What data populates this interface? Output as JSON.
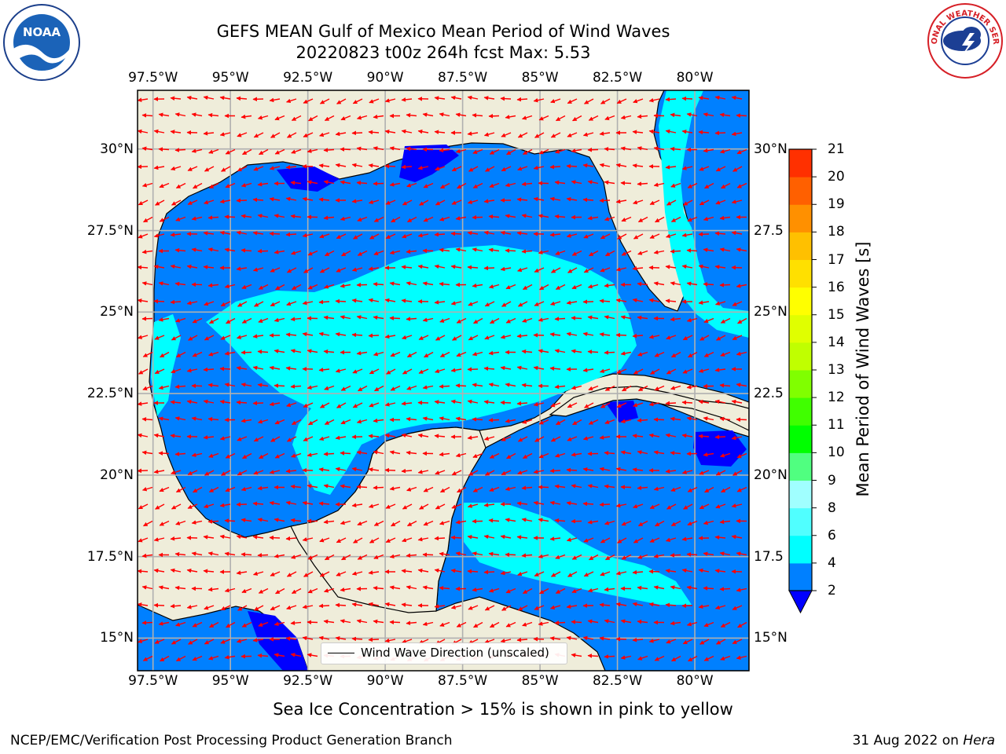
{
  "title": {
    "line1": "GEFS MEAN Gulf of Mexico Mean Period of Wind Waves",
    "line2": "20220823 t00z 264h fcst   Max: 5.53"
  },
  "map": {
    "extent": {
      "lon_min": -98,
      "lon_max": -78.25,
      "lat_min": 14,
      "lat_max": 31.8
    },
    "lon_ticks": [
      "97.5°W",
      "95°W",
      "92.5°W",
      "90°W",
      "87.5°W",
      "85°W",
      "82.5°W",
      "80°W"
    ],
    "lat_ticks_left": [
      "30°N",
      "27.5°N",
      "25°N",
      "22.5°N",
      "20°N",
      "17.5°N",
      "15°N"
    ],
    "lat_ticks_right": [
      "30°N",
      "27.5",
      "25°N",
      "22.5",
      "20°N",
      "17.5",
      "15°N"
    ],
    "colors": {
      "land": "#efedda",
      "coast": "#000000",
      "grid": "#b0b0b0",
      "arrow": "#ff0000",
      "band_2_4": "#0080ff",
      "band_4_6": "#00ffff",
      "band_lt_2": "#0000ff"
    },
    "legend_label": "Wind Wave Direction (unscaled)"
  },
  "colorbar": {
    "label": "Mean Period of Wind Waves [s]",
    "ticks": [
      "2",
      "4",
      "6",
      "8",
      "9",
      "10",
      "11",
      "12",
      "13",
      "14",
      "15",
      "16",
      "17",
      "18",
      "19",
      "20",
      "21"
    ],
    "colors": [
      "#0080ff",
      "#00ffff",
      "#50ffff",
      "#a0ffff",
      "#50ff80",
      "#00ff00",
      "#40ff00",
      "#80ff00",
      "#c0ff00",
      "#e0ff00",
      "#ffff00",
      "#ffe000",
      "#ffc000",
      "#ff9000",
      "#ff6000",
      "#ff3000",
      "#ff0000"
    ],
    "under_color": "#0000ff"
  },
  "footer": {
    "note": "Sea Ice Concentration > 15% is shown in pink to yellow",
    "left": "NCEP/EMC/Verification Post Processing Product Generation Branch",
    "right_date": "31 Aug 2022 on",
    "right_host": "Hera"
  },
  "logos": {
    "noaa": "NOAA",
    "nws": "NATIONAL WEATHER SERVICE"
  }
}
